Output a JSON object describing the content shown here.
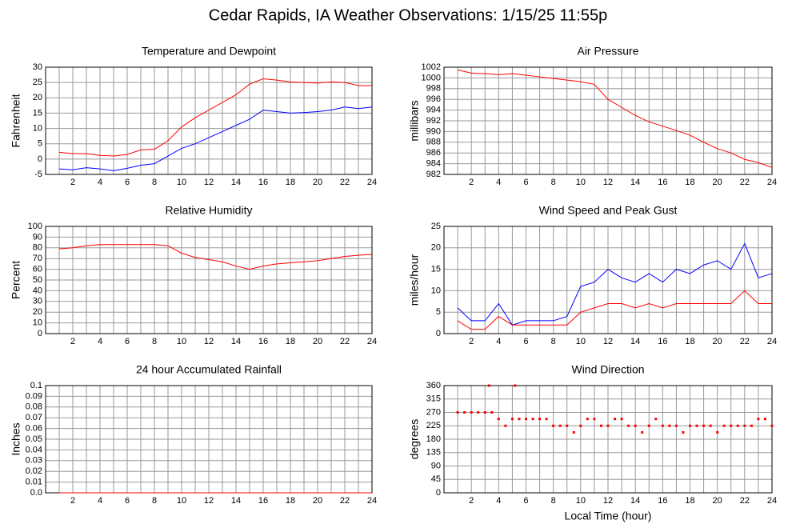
{
  "title": "Cedar Rapids, IA Weather Observations: 1/15/25 11:55p",
  "chart_data": [
    {
      "type": "line",
      "title": "Temperature and Dewpoint",
      "y_label": "Fahrenheit",
      "x": [
        1,
        2,
        3,
        4,
        5,
        6,
        7,
        8,
        9,
        10,
        11,
        12,
        13,
        14,
        15,
        16,
        17,
        18,
        19,
        20,
        21,
        22,
        23,
        24
      ],
      "series": [
        {
          "color": "#ff0000",
          "values": [
            2.2,
            1.8,
            1.8,
            1.2,
            1.0,
            1.5,
            3.0,
            3.2,
            6,
            10.5,
            13.5,
            16,
            18.5,
            21,
            24.5,
            26.2,
            25.8,
            25.2,
            25,
            24.8,
            25.2,
            25,
            24,
            24
          ]
        },
        {
          "color": "#0000ff",
          "values": [
            -3.2,
            -3.5,
            -2.8,
            -3.2,
            -3.8,
            -3,
            -2,
            -1.5,
            1,
            3.5,
            5,
            7,
            9,
            11,
            13,
            16,
            15.5,
            15,
            15.2,
            15.5,
            16,
            17,
            16.5,
            17
          ]
        }
      ],
      "xlim": [
        0,
        24
      ],
      "xticks": [
        2,
        4,
        6,
        8,
        10,
        12,
        14,
        16,
        18,
        20,
        22,
        24
      ],
      "ylim": [
        -5,
        30
      ],
      "yticks": [
        -5,
        0,
        5,
        10,
        15,
        20,
        25,
        30
      ],
      "grid": true
    },
    {
      "type": "line",
      "title": "Air Pressure",
      "y_label": "millibars",
      "x": [
        1,
        2,
        3,
        4,
        5,
        6,
        7,
        8,
        9,
        10,
        11,
        12,
        13,
        14,
        15,
        16,
        17,
        18,
        19,
        20,
        21,
        22,
        23,
        24
      ],
      "series": [
        {
          "color": "#ff0000",
          "values": [
            1001.5,
            1000.9,
            1000.8,
            1000.6,
            1000.8,
            1000.5,
            1000.2,
            999.9,
            999.6,
            999.3,
            998.8,
            996,
            994.5,
            993,
            991.8,
            991,
            990.2,
            989.3,
            988,
            986.8,
            986,
            984.8,
            984.2,
            983.3
          ]
        }
      ],
      "xlim": [
        0,
        24
      ],
      "xticks": [
        2,
        4,
        6,
        8,
        10,
        12,
        14,
        16,
        18,
        20,
        22,
        24
      ],
      "ylim": [
        982,
        1002
      ],
      "yticks": [
        982,
        984,
        986,
        988,
        990,
        992,
        994,
        996,
        998,
        1000,
        1002
      ],
      "grid": true
    },
    {
      "type": "line",
      "title": "Relative Humidity",
      "y_label": "Percent",
      "x": [
        1,
        2,
        3,
        4,
        5,
        6,
        7,
        8,
        9,
        10,
        11,
        12,
        13,
        14,
        15,
        16,
        17,
        18,
        19,
        20,
        21,
        22,
        23,
        24
      ],
      "series": [
        {
          "color": "#ff0000",
          "values": [
            79,
            80,
            82,
            83,
            83,
            83,
            83,
            83,
            82,
            75,
            71,
            69,
            67,
            63,
            60,
            63,
            65,
            66,
            67,
            68,
            70,
            72,
            73,
            74
          ]
        }
      ],
      "xlim": [
        0,
        24
      ],
      "xticks": [
        2,
        4,
        6,
        8,
        10,
        12,
        14,
        16,
        18,
        20,
        22,
        24
      ],
      "ylim": [
        0,
        100
      ],
      "yticks": [
        0,
        10,
        20,
        30,
        40,
        50,
        60,
        70,
        80,
        90,
        100
      ],
      "grid": true
    },
    {
      "type": "line",
      "title": "Wind Speed and Peak Gust",
      "y_label": "miles/hour",
      "x": [
        1,
        2,
        3,
        4,
        5,
        6,
        7,
        8,
        9,
        10,
        11,
        12,
        13,
        14,
        15,
        16,
        17,
        18,
        19,
        20,
        21,
        22,
        23,
        24
      ],
      "series": [
        {
          "color": "#0000ff",
          "values": [
            6,
            3,
            3,
            7,
            2,
            3,
            3,
            3,
            4,
            11,
            12,
            15,
            13,
            12,
            14,
            12,
            15,
            14,
            16,
            17,
            15,
            21,
            13,
            14
          ]
        },
        {
          "color": "#ff0000",
          "values": [
            3,
            1,
            1,
            4,
            2,
            2,
            2,
            2,
            2,
            5,
            6,
            7,
            7,
            6,
            7,
            6,
            7,
            7,
            7,
            7,
            7,
            10,
            7,
            7
          ]
        }
      ],
      "xlim": [
        0,
        24
      ],
      "xticks": [
        2,
        4,
        6,
        8,
        10,
        12,
        14,
        16,
        18,
        20,
        22,
        24
      ],
      "ylim": [
        0,
        25
      ],
      "yticks": [
        0,
        5,
        10,
        15,
        20,
        25
      ],
      "grid": true
    },
    {
      "type": "line",
      "title": "24 hour Accumulated Rainfall",
      "y_label": "Inches",
      "x": [
        1,
        24
      ],
      "series": [
        {
          "color": "#ff0000",
          "values": [
            0,
            0
          ]
        }
      ],
      "xlim": [
        0,
        24
      ],
      "xticks": [
        2,
        4,
        6,
        8,
        10,
        12,
        14,
        16,
        18,
        20,
        22,
        24
      ],
      "ylim": [
        0,
        0.1
      ],
      "yticks": [
        {
          "value": 0,
          "label": "0.0"
        },
        0.01,
        0.02,
        0.03,
        0.04,
        0.05,
        0.06,
        0.07,
        0.08,
        0.09,
        {
          "value": 0.1,
          "label": "0.1"
        }
      ],
      "grid": true
    },
    {
      "type": "scatter",
      "title": "Wind Direction",
      "y_label": "degrees",
      "x_label": "Local Time (hour)",
      "x": [
        1,
        1.5,
        2,
        2.5,
        3,
        3.3,
        3.5,
        4,
        4.5,
        5,
        5.2,
        5.5,
        6,
        6.5,
        7,
        7.5,
        8,
        8.5,
        9,
        9.5,
        10,
        10.5,
        11,
        11.5,
        12,
        12.5,
        13,
        13.5,
        14,
        14.5,
        15,
        15.5,
        16,
        16.5,
        17,
        17.5,
        18,
        18.5,
        19,
        19.5,
        20,
        20.5,
        21,
        21.5,
        22,
        22.5,
        23,
        23.5,
        24
      ],
      "series": [
        {
          "color": "#ff0000",
          "values": [
            270,
            270,
            270,
            270,
            270,
            360,
            270,
            248,
            225,
            248,
            360,
            248,
            248,
            248,
            248,
            248,
            225,
            225,
            225,
            203,
            225,
            248,
            248,
            225,
            225,
            248,
            248,
            225,
            225,
            203,
            225,
            248,
            225,
            225,
            225,
            203,
            225,
            225,
            225,
            225,
            203,
            225,
            225,
            225,
            225,
            225,
            248,
            248,
            225
          ]
        }
      ],
      "xlim": [
        0,
        24
      ],
      "xticks": [
        2,
        4,
        6,
        8,
        10,
        12,
        14,
        16,
        18,
        20,
        22,
        24
      ],
      "ylim": [
        0,
        360
      ],
      "yticks": [
        0,
        45,
        90,
        135,
        180,
        225,
        270,
        315,
        360
      ],
      "grid": true
    }
  ]
}
